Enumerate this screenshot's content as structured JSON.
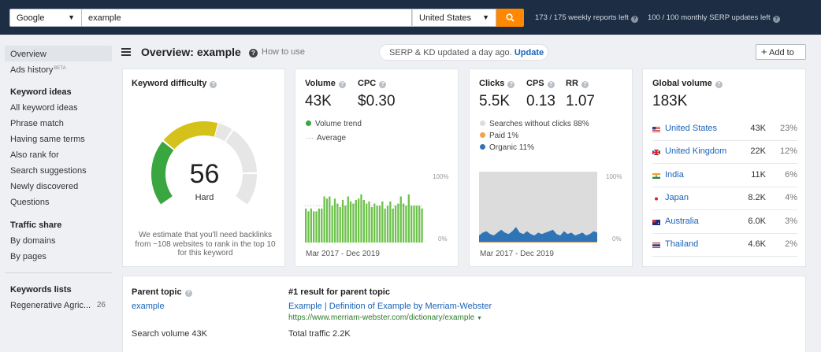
{
  "topbar": {
    "engine": "Google",
    "query": "example",
    "country": "United States",
    "weekly_reports": "173 / 175 weekly reports left",
    "monthly_updates": "100 / 100 monthly SERP updates left"
  },
  "sidebar": {
    "overview": "Overview",
    "ads_history": "Ads history",
    "beta": "BETA",
    "keyword_ideas_heading": "Keyword ideas",
    "keyword_ideas": [
      "All keyword ideas",
      "Phrase match",
      "Having same terms",
      "Also rank for",
      "Search suggestions",
      "Newly discovered",
      "Questions"
    ],
    "traffic_share_heading": "Traffic share",
    "traffic_share": [
      "By domains",
      "By pages"
    ],
    "keywords_lists_heading": "Keywords lists",
    "list_name": "Regenerative Agric...",
    "list_count": "26"
  },
  "header": {
    "title": "Overview: example",
    "how_to_use": "How to use",
    "serp_status": "SERP & KD updated a day ago.",
    "update_link": "Update",
    "add_to": "Add to"
  },
  "kd": {
    "label": "Keyword difficulty",
    "score": "56",
    "score_value": 56,
    "rating": "Hard",
    "note": "We estimate that you'll need backlinks from ~108 websites to rank in the top 10 for this keyword",
    "colors": {
      "green": "#3aa63f",
      "yellow": "#d4c21a",
      "track": "#e6e6e6"
    }
  },
  "volume": {
    "volume_label": "Volume",
    "cpc_label": "CPC",
    "volume": "43K",
    "cpc": "$0.30",
    "legend_trend": "Volume trend",
    "legend_avg": "Average",
    "axis_top": "100%",
    "axis_bottom": "0%",
    "range": "Mar 2017 - Dec 2019",
    "bar_color": "#6cc24a"
  },
  "volume_trend": [
    48,
    44,
    48,
    44,
    44,
    48,
    48,
    65,
    62,
    65,
    52,
    62,
    55,
    50,
    60,
    52,
    65,
    58,
    55,
    60,
    62,
    68,
    60,
    55,
    58,
    50,
    55,
    52,
    52,
    58,
    48,
    52,
    58,
    48,
    52,
    55,
    65,
    55,
    52,
    68,
    52,
    52,
    52,
    52,
    48
  ],
  "clicks": {
    "clicks_label": "Clicks",
    "cps_label": "CPS",
    "rr_label": "RR",
    "clicks": "5.5K",
    "cps": "0.13",
    "rr": "1.07",
    "legend_no_clicks": "Searches without clicks 88%",
    "legend_paid": "Paid 1%",
    "legend_organic": "Organic 11%",
    "axis_top": "100%",
    "axis_bottom": "0%",
    "range": "Mar 2017 - Dec 2019",
    "colors": {
      "no_clicks": "#dcdcdc",
      "paid": "#f4a24a",
      "organic": "#2f74b4"
    }
  },
  "clicks_organic": [
    10,
    14,
    16,
    12,
    10,
    14,
    18,
    14,
    12,
    16,
    22,
    14,
    12,
    16,
    12,
    10,
    14,
    12,
    14,
    16,
    18,
    12,
    10,
    16,
    12,
    14,
    10,
    12,
    14,
    10,
    12,
    16,
    14
  ],
  "global": {
    "label": "Global volume",
    "total": "183K",
    "countries": [
      {
        "name": "United States",
        "volume": "43K",
        "pct": "23%",
        "flag": "us"
      },
      {
        "name": "United Kingdom",
        "volume": "22K",
        "pct": "12%",
        "flag": "uk"
      },
      {
        "name": "India",
        "volume": "11K",
        "pct": "6%",
        "flag": "in"
      },
      {
        "name": "Japan",
        "volume": "8.2K",
        "pct": "4%",
        "flag": "jp"
      },
      {
        "name": "Australia",
        "volume": "6.0K",
        "pct": "3%",
        "flag": "au"
      },
      {
        "name": "Thailand",
        "volume": "4.6K",
        "pct": "2%",
        "flag": "th"
      }
    ]
  },
  "parent": {
    "label": "Parent topic",
    "topic": "example",
    "search_volume": "Search volume 43K",
    "result_label": "#1 result for parent topic",
    "result_title": "Example | Definition of Example by Merriam-Webster",
    "result_url": "https://www.merriam-webster.com/dictionary/example",
    "total_traffic": "Total traffic 2.2K"
  }
}
